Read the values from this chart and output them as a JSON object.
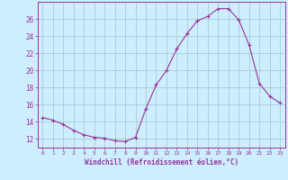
{
  "hours": [
    0,
    1,
    2,
    3,
    4,
    5,
    6,
    7,
    8,
    9,
    10,
    11,
    12,
    13,
    14,
    15,
    16,
    17,
    18,
    19,
    20,
    21,
    22,
    23
  ],
  "values": [
    14.5,
    14.2,
    13.7,
    13.0,
    12.5,
    12.2,
    12.1,
    11.8,
    11.7,
    12.2,
    15.5,
    18.3,
    20.0,
    22.5,
    24.3,
    25.8,
    26.3,
    27.2,
    27.2,
    25.9,
    23.0,
    18.5,
    17.0,
    16.2
  ],
  "line_color": "#993399",
  "marker": "+",
  "bg_color": "#cceeff",
  "grid_color": "#aacccc",
  "xlabel": "Windchill (Refroidissement éolien,°C)",
  "ylabel_ticks": [
    12,
    14,
    16,
    18,
    20,
    22,
    24,
    26
  ],
  "ylim": [
    11.0,
    28.0
  ],
  "xlim": [
    -0.5,
    23.5
  ],
  "xlabel_color": "#993399",
  "tick_color": "#993399",
  "spine_color": "#993399"
}
